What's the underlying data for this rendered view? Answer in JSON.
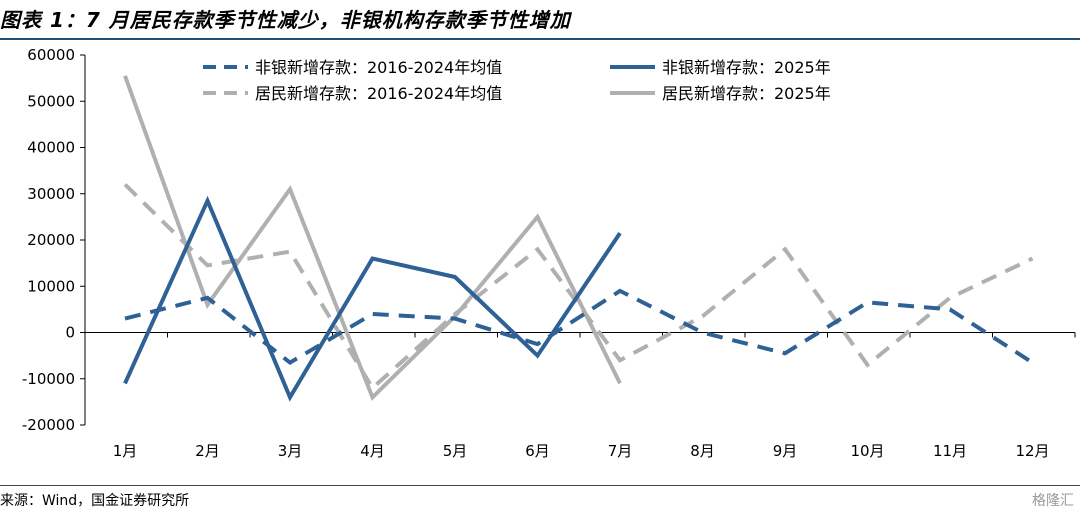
{
  "title": "图表 1：7 月居民存款季节性减少，非银机构存款季节性增加",
  "source": "来源：Wind，国金证券研究所",
  "watermark": "格隆汇",
  "chart_data": {
    "type": "line",
    "categories": [
      "1月",
      "2月",
      "3月",
      "4月",
      "5月",
      "6月",
      "7月",
      "8月",
      "9月",
      "10月",
      "11月",
      "12月"
    ],
    "ylim": [
      -20000,
      60000
    ],
    "yticks": [
      -20000,
      -10000,
      0,
      10000,
      20000,
      30000,
      40000,
      50000,
      60000
    ],
    "ytick_labels": [
      "-20000",
      "-10000",
      "0",
      "10000",
      "20000",
      "30000",
      "40000",
      "50000",
      "60000"
    ],
    "legend_position": "top",
    "series": [
      {
        "name": "非银新增存款：2016-2024年均值",
        "color": "#2e6196",
        "dashed": true,
        "values": [
          3000,
          7500,
          -6500,
          4000,
          3000,
          -2500,
          9000,
          0,
          -4500,
          6500,
          5000,
          -6500
        ]
      },
      {
        "name": "非银新增存款：2025年",
        "color": "#2e6196",
        "dashed": false,
        "values": [
          -11000,
          28500,
          -14000,
          16000,
          12000,
          -5000,
          21500,
          null,
          null,
          null,
          null,
          null
        ]
      },
      {
        "name": "居民新增存款：2016-2024年均值",
        "color": "#b0b0b0",
        "dashed": true,
        "values": [
          32000,
          14500,
          17500,
          -12000,
          4000,
          18000,
          -6000,
          3500,
          18000,
          -7000,
          7500,
          16000
        ]
      },
      {
        "name": "居民新增存款：2025年",
        "color": "#b0b0b0",
        "dashed": false,
        "values": [
          55500,
          6000,
          31000,
          -14000,
          3500,
          25000,
          -11000,
          null,
          null,
          null,
          null,
          null
        ]
      }
    ]
  }
}
